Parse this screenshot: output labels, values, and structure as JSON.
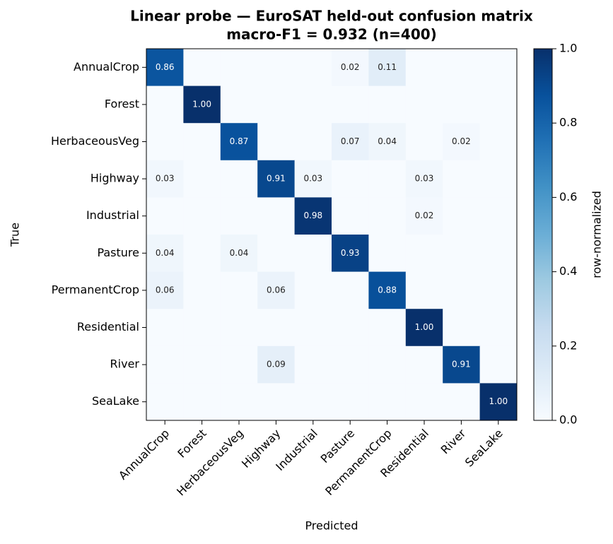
{
  "chart_data": {
    "type": "heatmap",
    "title": [
      "Linear probe — EuroSAT held-out confusion matrix",
      "macro-F1 = 0.932 (n=400)"
    ],
    "xlabel": "Predicted",
    "ylabel": "True",
    "x_categories": [
      "AnnualCrop",
      "Forest",
      "HerbaceousVeg",
      "Highway",
      "Industrial",
      "Pasture",
      "PermanentCrop",
      "Residential",
      "River",
      "SeaLake"
    ],
    "y_categories": [
      "AnnualCrop",
      "Forest",
      "HerbaceousVeg",
      "Highway",
      "Industrial",
      "Pasture",
      "PermanentCrop",
      "Residential",
      "River",
      "SeaLake"
    ],
    "values": [
      [
        0.86,
        0,
        0,
        0,
        0,
        0.02,
        0.11,
        0,
        0,
        0
      ],
      [
        0,
        1,
        0,
        0,
        0,
        0,
        0,
        0,
        0,
        0
      ],
      [
        0,
        0,
        0.87,
        0,
        0,
        0.07,
        0.04,
        0,
        0.02,
        0
      ],
      [
        0.03,
        0,
        0,
        0.91,
        0.03,
        0,
        0,
        0.03,
        0,
        0
      ],
      [
        0,
        0,
        0,
        0,
        0.98,
        0,
        0,
        0.02,
        0,
        0
      ],
      [
        0.04,
        0,
        0.04,
        0,
        0,
        0.93,
        0,
        0,
        0,
        0
      ],
      [
        0.06,
        0,
        0,
        0.06,
        0,
        0,
        0.88,
        0,
        0,
        0
      ],
      [
        0,
        0,
        0,
        0,
        0,
        0,
        0,
        1,
        0,
        0
      ],
      [
        0,
        0,
        0,
        0.09,
        0,
        0,
        0,
        0,
        0.91,
        0
      ],
      [
        0,
        0,
        0,
        0,
        0,
        0,
        0,
        0,
        0,
        1
      ]
    ],
    "value_labels": [
      [
        "0.86",
        null,
        null,
        null,
        null,
        "0.02",
        "0.11",
        null,
        null,
        null
      ],
      [
        null,
        "1.00",
        null,
        null,
        null,
        null,
        null,
        null,
        null,
        null
      ],
      [
        null,
        null,
        "0.87",
        null,
        null,
        "0.07",
        "0.04",
        null,
        "0.02",
        null
      ],
      [
        "0.03",
        null,
        null,
        "0.91",
        "0.03",
        null,
        null,
        "0.03",
        null,
        null
      ],
      [
        null,
        null,
        null,
        null,
        "0.98",
        null,
        null,
        "0.02",
        null,
        null
      ],
      [
        "0.04",
        null,
        "0.04",
        null,
        null,
        "0.93",
        null,
        null,
        null,
        null
      ],
      [
        "0.06",
        null,
        null,
        "0.06",
        null,
        null,
        "0.88",
        null,
        null,
        null
      ],
      [
        null,
        null,
        null,
        null,
        null,
        null,
        null,
        "1.00",
        null,
        null
      ],
      [
        null,
        null,
        null,
        "0.09",
        null,
        null,
        null,
        null,
        "0.91",
        null
      ],
      [
        null,
        null,
        null,
        null,
        null,
        null,
        null,
        null,
        null,
        "1.00"
      ]
    ],
    "colormap": "Blues",
    "colorbar_label": "row-normalized",
    "zlim": [
      0,
      1
    ],
    "zticks": [
      {
        "value": 0,
        "label": "0.0"
      },
      {
        "value": 0.2,
        "label": "0.2"
      },
      {
        "value": 0.4,
        "label": "0.4"
      },
      {
        "value": 0.6,
        "label": "0.6"
      },
      {
        "value": 0.8,
        "label": "0.8"
      },
      {
        "value": 1,
        "label": "1.0"
      }
    ]
  }
}
